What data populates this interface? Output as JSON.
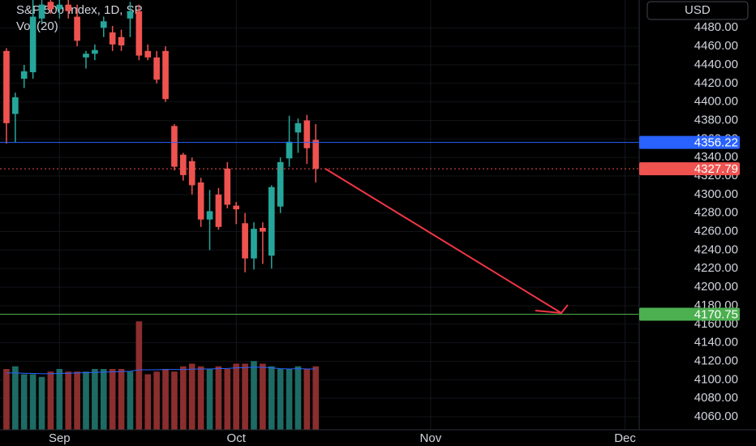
{
  "chart_data": {
    "type": "candlestick",
    "title": "S&P 500 Index, 1D, SP",
    "volume_title": "Vol (20)",
    "currency": "USD",
    "open": [
      4455,
      4387,
      4425,
      4432,
      4490,
      4508,
      4500,
      4505,
      4492,
      4448,
      4452,
      4480,
      4475,
      4470,
      4490,
      4498,
      4455,
      4448,
      4455,
      4374,
      4343,
      4336,
      4313,
      4273,
      4300,
      4328,
      4288,
      4269,
      4231,
      4264,
      4234,
      4287,
      4339,
      4367,
      4380,
      4359
    ],
    "high": [
      4458,
      4410,
      4440,
      4510,
      4512,
      4512,
      4512,
      4512,
      4505,
      4455,
      4462,
      4492,
      4482,
      4478,
      4508,
      4505,
      4462,
      4455,
      4460,
      4376,
      4345,
      4340,
      4318,
      4305,
      4307,
      4335,
      4292,
      4280,
      4270,
      4270,
      4310,
      4340,
      4385,
      4382,
      4386,
      4376
    ],
    "low": [
      4355,
      4356,
      4415,
      4425,
      4485,
      4495,
      4490,
      4490,
      4460,
      4436,
      4445,
      4470,
      4455,
      4455,
      4470,
      4445,
      4445,
      4420,
      4400,
      4326,
      4315,
      4300,
      4265,
      4240,
      4262,
      4285,
      4268,
      4216,
      4219,
      4225,
      4220,
      4280,
      4330,
      4345,
      4333,
      4313
    ],
    "close": [
      4377,
      4405,
      4433,
      4492,
      4505,
      4500,
      4505,
      4498,
      4466,
      4452,
      4456,
      4487,
      4462,
      4461,
      4498,
      4450,
      4448,
      4424,
      4403,
      4330,
      4321,
      4310,
      4273,
      4282,
      4265,
      4289,
      4284,
      4231,
      4263,
      4260,
      4308,
      4335,
      4357,
      4377,
      4350,
      4327.79
    ],
    "volume": [
      2.3,
      2.4,
      2.1,
      2.1,
      2.0,
      2.2,
      2.3,
      2.2,
      2.2,
      2.2,
      2.3,
      2.3,
      2.3,
      2.3,
      2.2,
      4.1,
      2.1,
      2.2,
      2.3,
      2.2,
      2.4,
      2.5,
      2.4,
      2.3,
      2.4,
      2.3,
      2.5,
      2.5,
      2.6,
      2.5,
      2.4,
      2.3,
      2.3,
      2.4,
      2.3,
      2.4
    ],
    "volume_ma": [
      2.15,
      2.15,
      2.14,
      2.13,
      2.12,
      2.12,
      2.13,
      2.14,
      2.15,
      2.16,
      2.17,
      2.18,
      2.19,
      2.2,
      2.21,
      2.27,
      2.27,
      2.27,
      2.28,
      2.28,
      2.28,
      2.29,
      2.3,
      2.3,
      2.31,
      2.32,
      2.34,
      2.35,
      2.37,
      2.36,
      2.34,
      2.31,
      2.3,
      2.31,
      2.3,
      2.3
    ],
    "vlim": [
      0,
      16.25
    ],
    "up_color": "#26a69a",
    "down_color": "#ef5350",
    "up_volume_color": "#1d6b64",
    "down_volume_color": "#8b2e2e",
    "volume_ma_color": "#2962ff",
    "xlim": [
      -0.73,
      71.6
    ],
    "xticks": [
      {
        "value": 6,
        "label": "Sep"
      },
      {
        "value": 26,
        "label": "Oct"
      },
      {
        "value": 48,
        "label": "Nov"
      },
      {
        "value": 70,
        "label": "Dec"
      }
    ],
    "ylim": [
      4046,
      4510
    ],
    "yticks": [
      {
        "value": 4060,
        "label": "4060.00"
      },
      {
        "value": 4080,
        "label": "4080.00"
      },
      {
        "value": 4100,
        "label": "4100.00"
      },
      {
        "value": 4120,
        "label": "4120.00"
      },
      {
        "value": 4140,
        "label": "4140.00"
      },
      {
        "value": 4160,
        "label": "4160.00"
      },
      {
        "value": 4180,
        "label": "4180.00"
      },
      {
        "value": 4200,
        "label": "4200.00"
      },
      {
        "value": 4220,
        "label": "4220.00"
      },
      {
        "value": 4240,
        "label": "4240.00"
      },
      {
        "value": 4260,
        "label": "4260.00"
      },
      {
        "value": 4280,
        "label": "4280.00"
      },
      {
        "value": 4300,
        "label": "4300.00"
      },
      {
        "value": 4320,
        "label": "4320.00"
      },
      {
        "value": 4340,
        "label": "4340.00"
      },
      {
        "value": 4360,
        "label": "4360.00"
      },
      {
        "value": 4380,
        "label": "4380.00"
      },
      {
        "value": 4400,
        "label": "4400.00"
      },
      {
        "value": 4420,
        "label": "4420.00"
      },
      {
        "value": 4440,
        "label": "4440.00"
      },
      {
        "value": 4460,
        "label": "4460.00"
      },
      {
        "value": 4480,
        "label": "4480.00"
      }
    ],
    "grid": true,
    "price_lines": [
      {
        "value": 4356.22,
        "color": "#2962ff",
        "style": "solid"
      },
      {
        "value": 4327.79,
        "color": "#ef5350",
        "style": "dotted"
      },
      {
        "value": 4170.75,
        "color": "#4caf50",
        "style": "solid"
      }
    ]
  }
}
